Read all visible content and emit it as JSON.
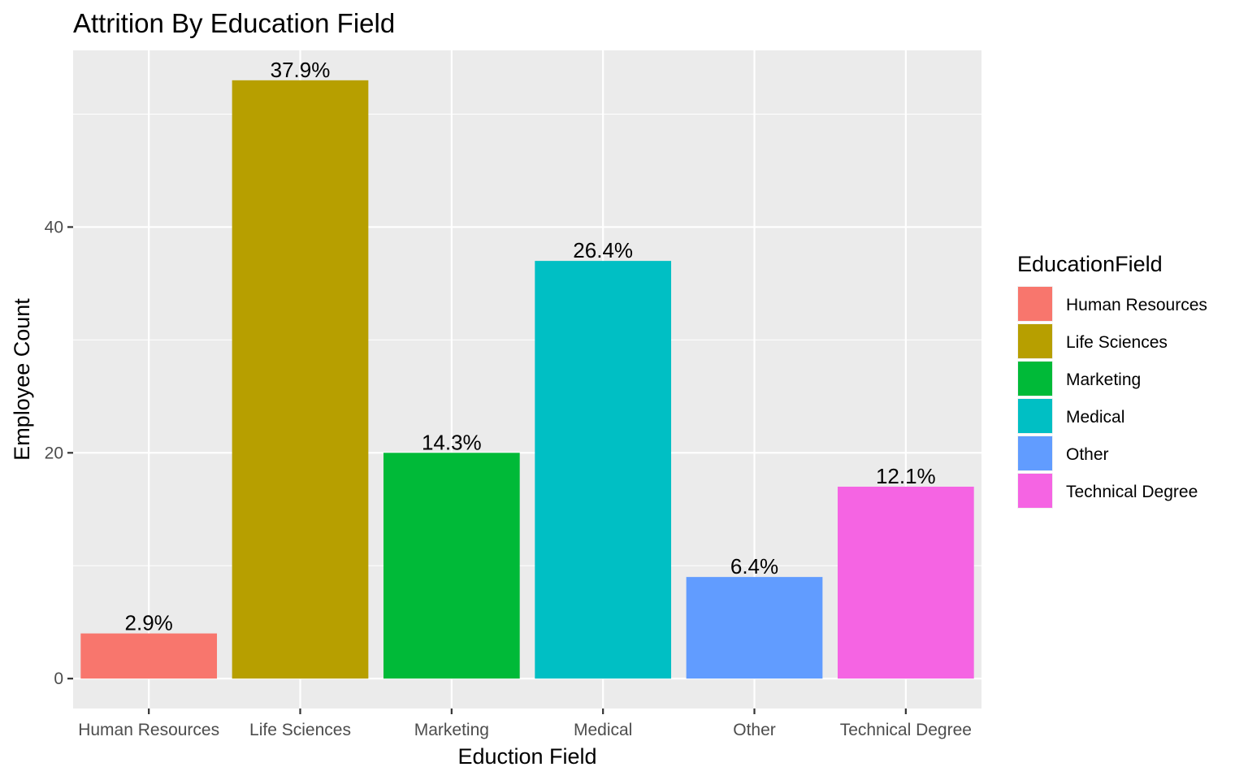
{
  "chart_data": {
    "type": "bar",
    "title": "Attrition By Education Field",
    "xlabel": "Eduction Field",
    "ylabel": "Employee Count",
    "categories": [
      "Human Resources",
      "Life Sciences",
      "Marketing",
      "Medical",
      "Other",
      "Technical Degree"
    ],
    "values": [
      4,
      53,
      20,
      37,
      9,
      17
    ],
    "data_labels": [
      "2.9%",
      "37.9%",
      "14.3%",
      "26.4%",
      "6.4%",
      "12.1%"
    ],
    "colors": [
      "#F8766D",
      "#B79F00",
      "#00BA38",
      "#00BFC4",
      "#619CFF",
      "#F564E3"
    ],
    "yticks": [
      0,
      20,
      40
    ],
    "ylim": [
      -2.65,
      55.65
    ],
    "grid": true,
    "legend": {
      "title": "EducationField",
      "position": "right"
    }
  }
}
